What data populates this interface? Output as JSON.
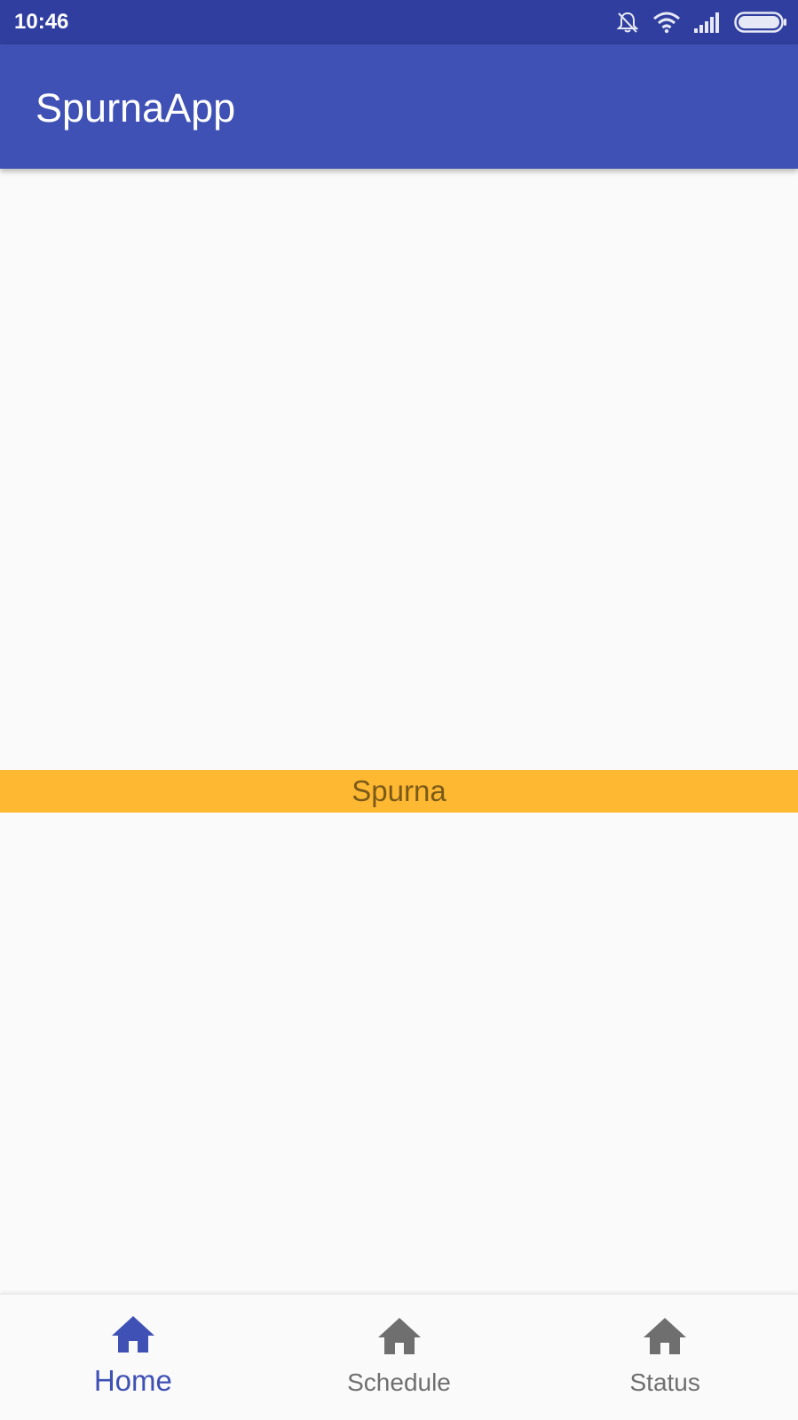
{
  "status_bar": {
    "time": "10:46",
    "icons": [
      "bell-off-icon",
      "wifi-icon",
      "cell-signal-icon",
      "battery-icon"
    ]
  },
  "app_bar": {
    "title": "SpurnaApp"
  },
  "content": {
    "banner_text": "Spurna"
  },
  "bottom_nav": {
    "items": [
      {
        "label": "Home",
        "icon": "home-icon",
        "active": true
      },
      {
        "label": "Schedule",
        "icon": "home-icon",
        "active": false
      },
      {
        "label": "Status",
        "icon": "home-icon",
        "active": false
      }
    ]
  },
  "colors": {
    "status_bar": "#303f9f",
    "primary": "#3f51b5",
    "banner": "#ffb832",
    "inactive": "#6f6f6f",
    "background": "#fafafa"
  }
}
